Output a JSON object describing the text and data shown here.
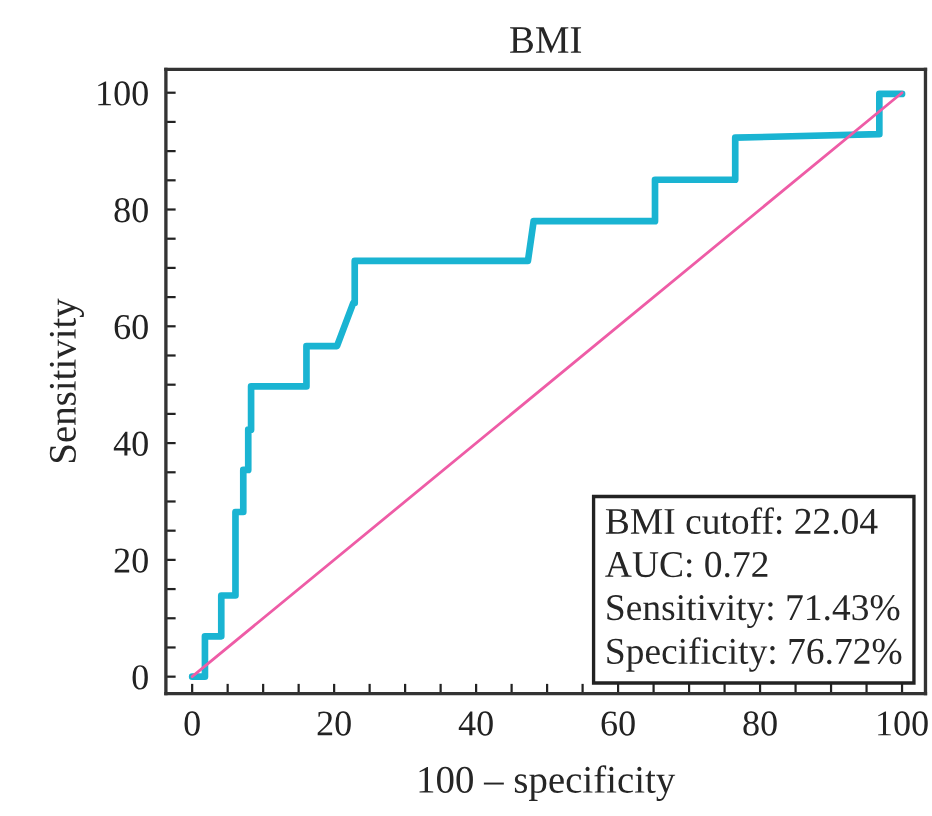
{
  "chart_data": {
    "type": "line",
    "title": "BMI",
    "xlabel": "100 – specificity",
    "ylabel": "Sensitivity",
    "series": [
      {
        "color": "#1ab4d2",
        "x": [
          0,
          1.8,
          1.8,
          4.1,
          4.1,
          6.1,
          6.1,
          7.2,
          7.2,
          7.9,
          7.9,
          8.3,
          8.3,
          16.1,
          16.1,
          20.4,
          22.7,
          22.9,
          22.9,
          47.3,
          48.1,
          65.2,
          65.2,
          76.5,
          76.5,
          96.8,
          96.8,
          100
        ],
        "values": [
          0,
          0,
          6.9,
          6.9,
          13.9,
          13.9,
          28.2,
          28.2,
          35.4,
          35.4,
          42.3,
          42.3,
          49.7,
          49.7,
          56.6,
          56.6,
          64.0,
          64.0,
          71.2,
          71.2,
          78.0,
          78.0,
          85.1,
          85.1,
          92.3,
          92.9,
          99.8,
          99.8
        ]
      },
      {
        "color": "#ee5ca6",
        "x": [
          0,
          100
        ],
        "values": [
          0,
          100
        ]
      }
    ],
    "xlim": [
      -3.7,
      103.3
    ],
    "ylim": [
      -2.9,
      104
    ],
    "xticks": [
      0,
      {
        "value": 5,
        "label": null
      },
      {
        "value": 10,
        "label": null
      },
      {
        "value": 15,
        "label": null
      },
      20,
      {
        "value": 25,
        "label": null
      },
      {
        "value": 30,
        "label": null
      },
      {
        "value": 35,
        "label": null
      },
      40,
      {
        "value": 45,
        "label": null
      },
      {
        "value": 50,
        "label": null
      },
      {
        "value": 55,
        "label": null
      },
      60,
      {
        "value": 65,
        "label": null
      },
      {
        "value": 70,
        "label": null
      },
      {
        "value": 75,
        "label": null
      },
      80,
      {
        "value": 85,
        "label": null
      },
      {
        "value": 90,
        "label": null
      },
      {
        "value": 95,
        "label": null
      },
      100
    ],
    "yticks": [
      0,
      {
        "value": 5,
        "label": null
      },
      {
        "value": 10,
        "label": null
      },
      {
        "value": 15,
        "label": null
      },
      20,
      {
        "value": 25,
        "label": null
      },
      {
        "value": 30,
        "label": null
      },
      {
        "value": 35,
        "label": null
      },
      40,
      {
        "value": 45,
        "label": null
      },
      {
        "value": 50,
        "label": null
      },
      {
        "value": 55,
        "label": null
      },
      60,
      {
        "value": 65,
        "label": null
      },
      {
        "value": 70,
        "label": null
      },
      {
        "value": 75,
        "label": null
      },
      80,
      {
        "value": 85,
        "label": null
      },
      {
        "value": 90,
        "label": null
      },
      {
        "value": 95,
        "label": null
      },
      100
    ],
    "annotations": [
      "BMI cutoff: 22.04",
      "AUC: 0.72",
      "Sensitivity: 71.43%",
      "Specificity: 76.72%"
    ],
    "grid": false,
    "legend": false
  }
}
